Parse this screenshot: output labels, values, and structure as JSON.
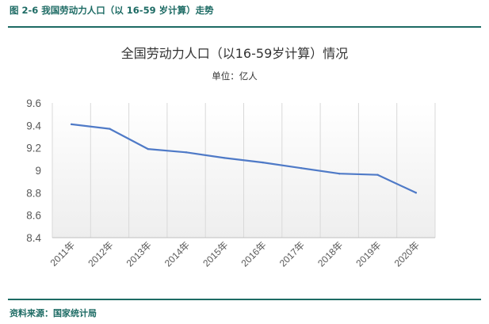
{
  "figure": {
    "caption": "图 2-6 我国劳动力人口（以 16-59 岁计算）走势",
    "source": "资料来源：国家统计局"
  },
  "colors": {
    "accent": "#1d6b64",
    "line": "#4f7ac7",
    "grid": "#d9d9d9"
  },
  "chart_data": {
    "type": "line",
    "title": "全国劳动力人口（以16-59岁计算）情况",
    "subtitle": "单位：亿人",
    "xlabel": "",
    "ylabel": "",
    "categories": [
      "2011年",
      "2012年",
      "2013年",
      "2014年",
      "2015年",
      "2016年",
      "2017年",
      "2018年",
      "2019年",
      "2020年"
    ],
    "series": [
      {
        "values": [
          9.41,
          9.37,
          9.19,
          9.16,
          9.11,
          9.07,
          9.02,
          8.97,
          8.96,
          8.8
        ]
      }
    ],
    "ylim": [
      8.4,
      9.6
    ],
    "yticks": [
      8.4,
      8.6,
      8.8,
      9.0,
      9.2,
      9.4,
      9.6
    ],
    "ytick_labels": [
      "8.4",
      "8.6",
      "8.8",
      "9",
      "9.2",
      "9.4",
      "9.6"
    ],
    "grid": "vertical",
    "legend": "none"
  }
}
